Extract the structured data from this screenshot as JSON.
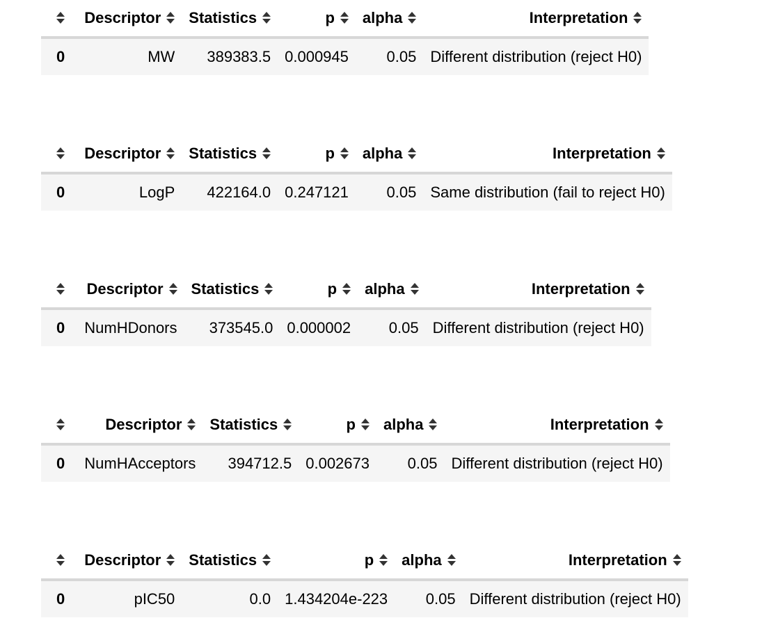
{
  "columns": {
    "descriptor": "Descriptor",
    "statistics": "Statistics",
    "p": "p",
    "alpha": "alpha",
    "interpretation": "Interpretation"
  },
  "icons": {
    "sort": "sort-arrows-icon",
    "sort_color": "#333333"
  },
  "colors": {
    "row_background": "#f5f5f5",
    "header_rule": "#d7d7d7"
  },
  "tables": [
    {
      "index": "0",
      "descriptor": "MW",
      "statistics": "389383.5",
      "p": "0.000945",
      "alpha": "0.05",
      "interpretation": "Different distribution (reject H0)"
    },
    {
      "index": "0",
      "descriptor": "LogP",
      "statistics": "422164.0",
      "p": "0.247121",
      "alpha": "0.05",
      "interpretation": "Same distribution (fail to reject H0)"
    },
    {
      "index": "0",
      "descriptor": "NumHDonors",
      "statistics": "373545.0",
      "p": "0.000002",
      "alpha": "0.05",
      "interpretation": "Different distribution (reject H0)"
    },
    {
      "index": "0",
      "descriptor": "NumHAcceptors",
      "statistics": "394712.5",
      "p": "0.002673",
      "alpha": "0.05",
      "interpretation": "Different distribution (reject H0)"
    },
    {
      "index": "0",
      "descriptor": "pIC50",
      "statistics": "0.0",
      "p": "1.434204e-223",
      "alpha": "0.05",
      "interpretation": "Different distribution (reject H0)"
    }
  ]
}
